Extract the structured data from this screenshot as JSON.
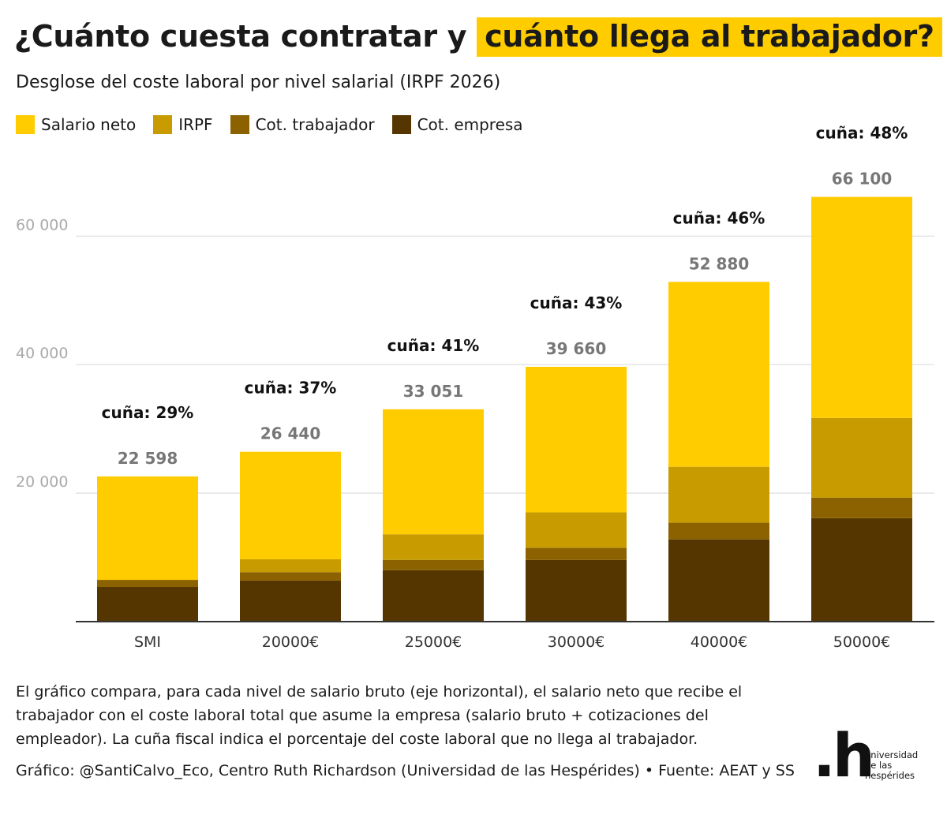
{
  "title": {
    "part1": "¿Cuánto cuesta contratar y",
    "highlight": "cuánto llega al trabajador?"
  },
  "subtitle": "Desglose del coste laboral por nivel salarial (IRPF 2026)",
  "legend": [
    {
      "label": "Salario neto",
      "color": "#ffcc00"
    },
    {
      "label": "IRPF",
      "color": "#c89c00"
    },
    {
      "label": "Cot. trabajador",
      "color": "#8c6200"
    },
    {
      "label": "Cot. empresa",
      "color": "#553600"
    }
  ],
  "chart_data": {
    "type": "bar",
    "stacked": true,
    "categories": [
      "SMI",
      "20000€",
      "25000€",
      "30000€",
      "40000€",
      "50000€"
    ],
    "series": [
      {
        "name": "Cot. empresa",
        "color": "#553600",
        "values": [
          5400,
          6400,
          8000,
          9600,
          12800,
          16100
        ]
      },
      {
        "name": "Cot. trabajador",
        "color": "#8c6200",
        "values": [
          1100,
          1300,
          1600,
          1900,
          2600,
          3200
        ]
      },
      {
        "name": "IRPF",
        "color": "#c89c00",
        "values": [
          0,
          2000,
          4000,
          5500,
          8700,
          12400
        ]
      },
      {
        "name": "Salario neto",
        "color": "#ffcc00",
        "values": [
          16098,
          16740,
          19451,
          22660,
          28780,
          34400
        ]
      }
    ],
    "totals": [
      "22 598",
      "26 440",
      "33 051",
      "39 660",
      "52 880",
      "66 100"
    ],
    "total_values": [
      22598,
      26440,
      33051,
      39660,
      52880,
      66100
    ],
    "wedge_labels": [
      "cuña: 29%",
      "cuña: 37%",
      "cuña: 41%",
      "cuña: 43%",
      "cuña: 46%",
      "cuña: 48%"
    ],
    "y_ticks": [
      20000,
      40000,
      60000
    ],
    "y_tick_labels": [
      "20 000",
      "40 000",
      "60 000"
    ],
    "ylim": [
      0,
      66100
    ],
    "grid": true,
    "legend_position": "top-left",
    "xlabel": "",
    "ylabel": ""
  },
  "footnote": "El gráfico compara, para cada nivel de salario bruto (eje horizontal), el salario neto que recibe el trabajador con el coste laboral total que asume la empresa (salario bruto + cotizaciones del empleador). La cuña fiscal indica el porcentaje del coste laboral que no llega al trabajador.",
  "credit": "Gráfico: @SantiCalvo_Eco, Centro Ruth Richardson (Universidad de las Hespérides) • Fuente: AEAT y SS",
  "logo": {
    "mark": ".h",
    "line1": "universidad",
    "line2": "de las",
    "line3": "hespérides"
  }
}
